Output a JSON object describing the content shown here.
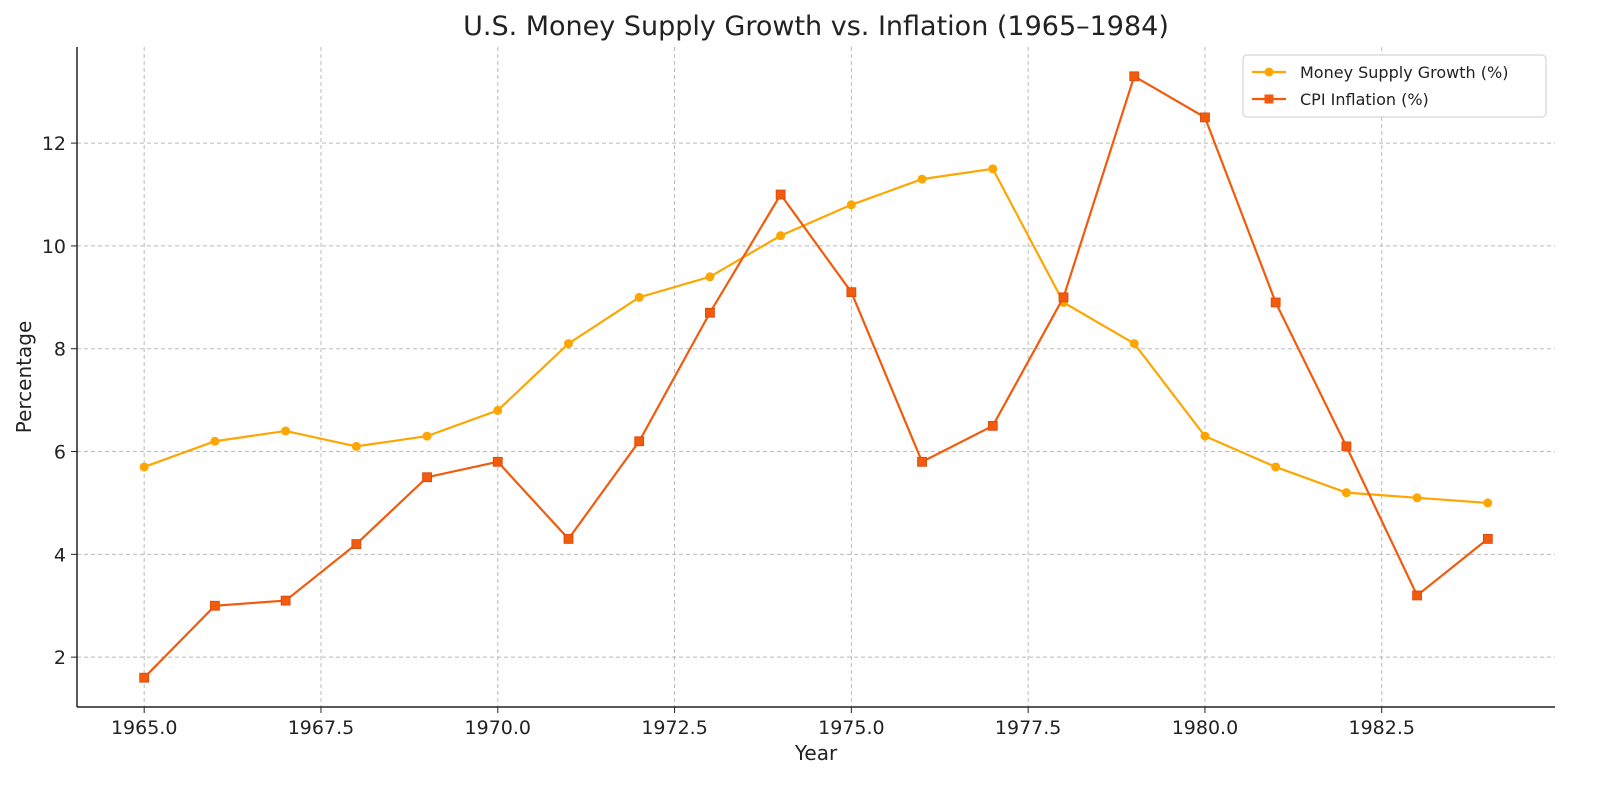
{
  "chart_data": {
    "type": "line",
    "title": "U.S. Money Supply Growth vs. Inflation (1965–1984)",
    "xlabel": "Year",
    "ylabel": "Percentage",
    "xlim": [
      1964.05,
      1984.95
    ],
    "ylim": [
      1.03,
      13.87
    ],
    "xticks": [
      1965.0,
      1967.5,
      1970.0,
      1972.5,
      1975.0,
      1977.5,
      1980.0,
      1982.5
    ],
    "xtick_labels": [
      "1965.0",
      "1967.5",
      "1970.0",
      "1972.5",
      "1975.0",
      "1977.5",
      "1980.0",
      "1982.5"
    ],
    "yticks": [
      2,
      4,
      6,
      8,
      10,
      12
    ],
    "ytick_labels": [
      "2",
      "4",
      "6",
      "8",
      "10",
      "12"
    ],
    "grid": true,
    "legend_placement": "top-right",
    "x": [
      1965,
      1966,
      1967,
      1968,
      1969,
      1970,
      1971,
      1972,
      1973,
      1974,
      1975,
      1976,
      1977,
      1978,
      1979,
      1980,
      1981,
      1982,
      1983,
      1984
    ],
    "series": [
      {
        "name": "Money Supply Growth (%)",
        "color": "#FFA500",
        "marker": "circle",
        "values": [
          5.7,
          6.2,
          6.4,
          6.1,
          6.3,
          6.8,
          8.1,
          9.0,
          9.4,
          10.2,
          10.8,
          11.3,
          11.5,
          8.9,
          8.1,
          6.3,
          5.7,
          5.2,
          5.1,
          5.0
        ]
      },
      {
        "name": "CPI Inflation (%)",
        "color": "#F25A0C",
        "marker": "square",
        "values": [
          1.6,
          3.0,
          3.1,
          4.2,
          5.5,
          5.8,
          4.3,
          6.2,
          8.7,
          11.0,
          9.1,
          5.8,
          6.5,
          9.0,
          13.3,
          12.5,
          8.9,
          6.1,
          3.2,
          4.3
        ]
      }
    ]
  }
}
